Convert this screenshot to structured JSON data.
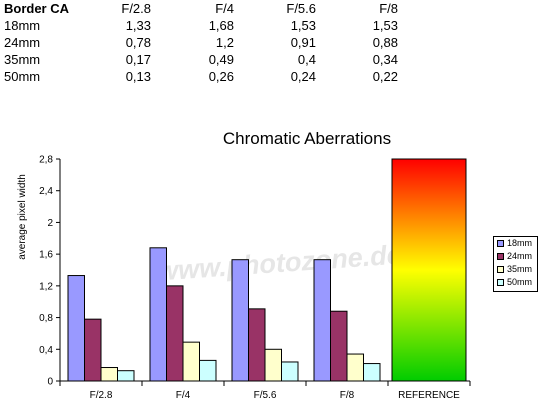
{
  "table": {
    "header": [
      "Border CA",
      "F/2.8",
      "F/4",
      "F/5.6",
      "F/8"
    ],
    "rows": [
      [
        "18mm",
        "1,33",
        "1,68",
        "1,53",
        "1,53"
      ],
      [
        "24mm",
        "0,78",
        "1,2",
        "0,91",
        "0,88"
      ],
      [
        "35mm",
        "0,17",
        "0,49",
        "0,4",
        "0,34"
      ],
      [
        "50mm",
        "0,13",
        "0,26",
        "0,24",
        "0,22"
      ]
    ]
  },
  "watermark": "www.photozone.de",
  "chart_data": {
    "type": "bar",
    "title": "Chromatic Aberrations",
    "xlabel": "",
    "ylabel": "average pixel width",
    "categories": [
      "F/2.8",
      "F/4",
      "F/5.6",
      "F/8",
      "REFERENCE"
    ],
    "ylim": [
      0,
      2.8
    ],
    "yticks": [
      "0",
      "0,4",
      "0,8",
      "1,2",
      "1,6",
      "2",
      "2,4",
      "2,8"
    ],
    "ytick_values": [
      0,
      0.4,
      0.8,
      1.2,
      1.6,
      2.0,
      2.4,
      2.8
    ],
    "series": [
      {
        "name": "18mm",
        "color": "#9999ff",
        "values": [
          1.33,
          1.68,
          1.53,
          1.53,
          null
        ]
      },
      {
        "name": "24mm",
        "color": "#993366",
        "values": [
          0.78,
          1.2,
          0.91,
          0.88,
          null
        ]
      },
      {
        "name": "35mm",
        "color": "#ffffcc",
        "values": [
          0.17,
          0.49,
          0.4,
          0.34,
          null
        ]
      },
      {
        "name": "50mm",
        "color": "#ccffff",
        "values": [
          0.13,
          0.26,
          0.24,
          0.22,
          null
        ]
      }
    ],
    "reference": {
      "value": 2.8,
      "gradient": [
        "#ff0000",
        "#ffff00",
        "#00cc00"
      ]
    },
    "grid": false,
    "legend": "right"
  }
}
